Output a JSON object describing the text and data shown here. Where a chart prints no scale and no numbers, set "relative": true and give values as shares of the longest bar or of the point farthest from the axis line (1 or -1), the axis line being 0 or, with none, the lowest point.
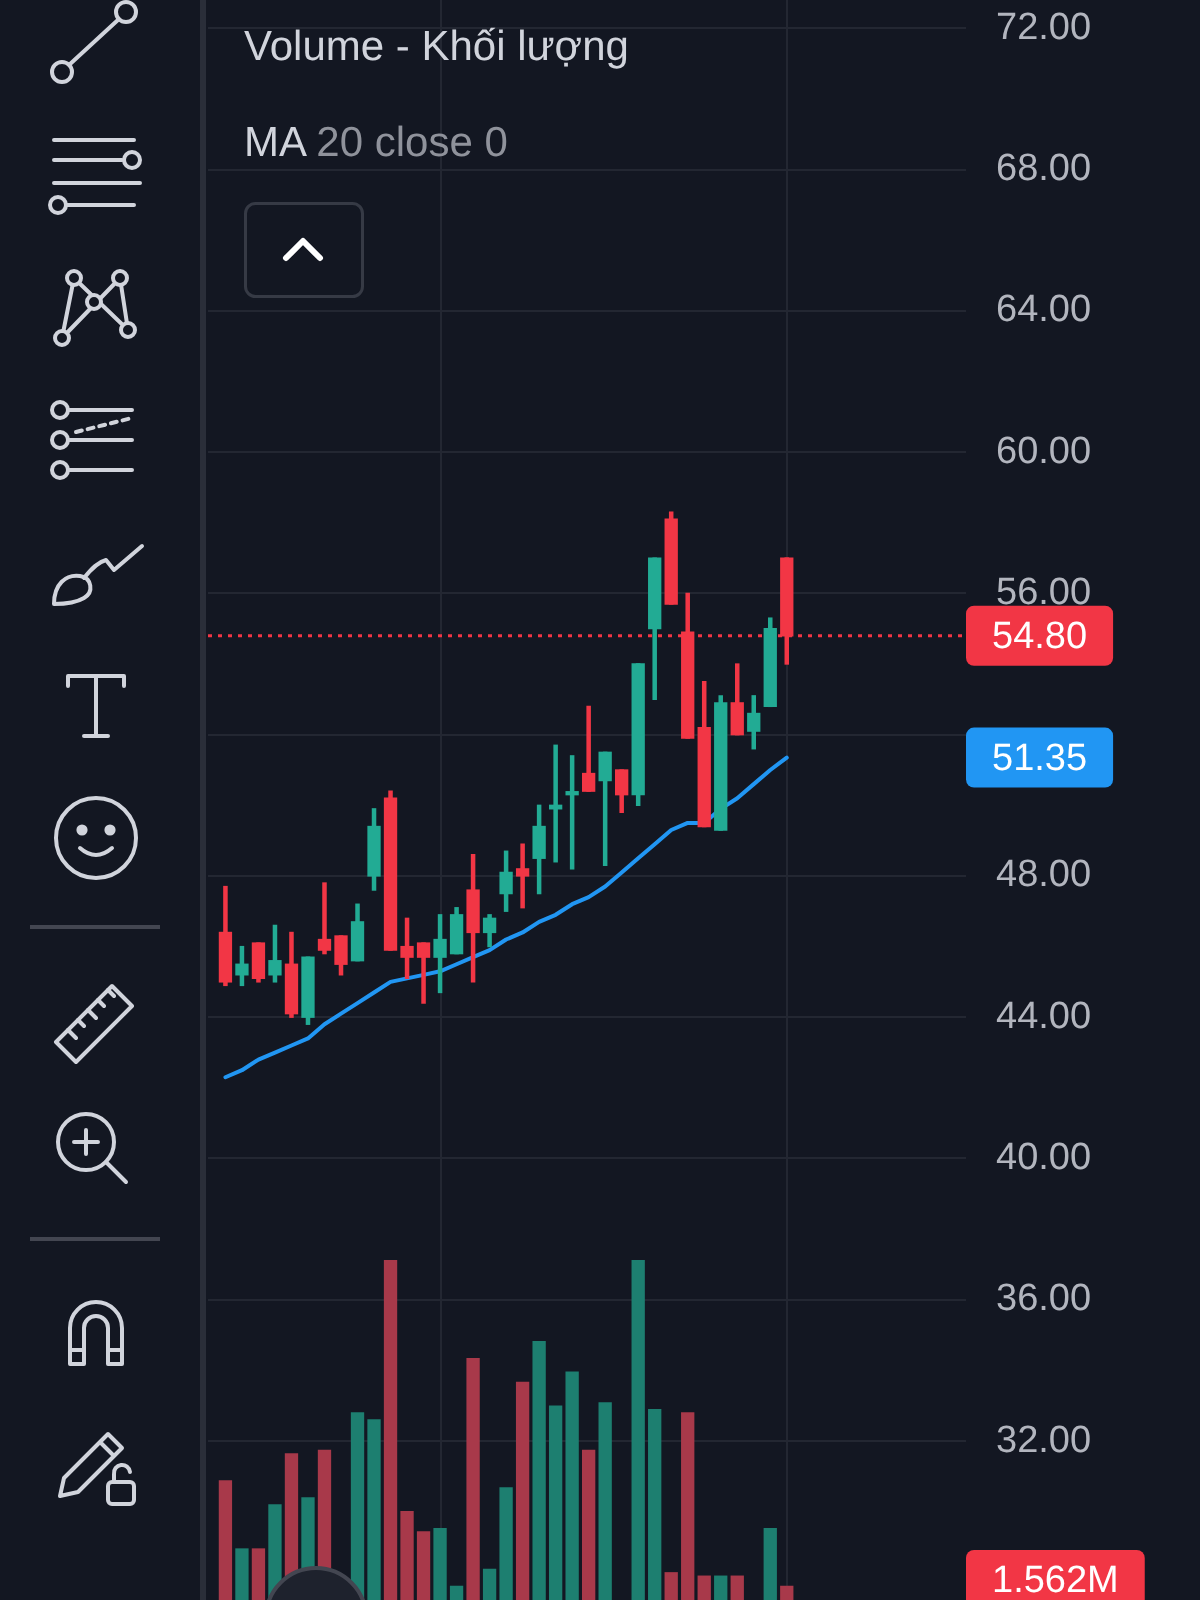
{
  "chart_data": [
    {
      "type": "candlestick",
      "title": "MA 20 close 0",
      "categories": [
        null,
        null,
        null,
        null,
        null,
        null,
        null,
        null,
        null,
        null,
        null,
        null,
        null,
        null,
        null,
        null,
        null,
        null,
        null,
        null,
        null,
        null,
        null,
        null,
        null,
        null,
        null,
        null,
        null,
        null,
        null,
        null,
        null,
        null,
        null
      ],
      "ohlc": [
        [
          46.4,
          47.7,
          44.9,
          45.0
        ],
        [
          45.2,
          46.0,
          44.9,
          45.5
        ],
        [
          46.1,
          46.1,
          45.0,
          45.1
        ],
        [
          45.2,
          46.6,
          45.0,
          45.6
        ],
        [
          45.5,
          46.4,
          44.0,
          44.1
        ],
        [
          44.0,
          45.7,
          43.8,
          45.7
        ],
        [
          46.2,
          47.8,
          45.8,
          45.9
        ],
        [
          46.3,
          46.3,
          45.2,
          45.5
        ],
        [
          45.6,
          47.2,
          45.6,
          46.7
        ],
        [
          48.0,
          49.9,
          47.6,
          49.4
        ],
        [
          50.2,
          50.4,
          45.9,
          45.9
        ],
        [
          46.0,
          46.8,
          45.1,
          45.7
        ],
        [
          46.1,
          46.1,
          44.4,
          45.7
        ],
        [
          45.7,
          46.9,
          44.7,
          46.2
        ],
        [
          45.8,
          47.1,
          45.8,
          46.9
        ],
        [
          47.6,
          48.6,
          45.0,
          46.4
        ],
        [
          46.4,
          46.9,
          46.0,
          46.8
        ],
        [
          47.5,
          48.7,
          47.0,
          48.1
        ],
        [
          48.2,
          48.9,
          47.1,
          48.0
        ],
        [
          48.5,
          50.0,
          47.5,
          49.4
        ],
        [
          49.9,
          51.7,
          48.4,
          50.0
        ],
        [
          50.3,
          51.4,
          48.2,
          50.3
        ],
        [
          50.9,
          52.8,
          50.4,
          50.4
        ],
        [
          50.7,
          51.5,
          48.3,
          51.5
        ],
        [
          51.0,
          51.0,
          49.8,
          50.3
        ],
        [
          50.3,
          54.0,
          50.0,
          54.0
        ],
        [
          55.0,
          57.0,
          53.0,
          57.0
        ],
        [
          58.1,
          58.3,
          55.7,
          55.7
        ],
        [
          54.9,
          56.0,
          51.9,
          51.9
        ],
        [
          52.2,
          53.5,
          49.4,
          49.4
        ],
        [
          49.3,
          53.1,
          49.3,
          52.9
        ],
        [
          52.9,
          54.0,
          52.0,
          52.0
        ],
        [
          52.1,
          53.1,
          51.6,
          52.6
        ],
        [
          52.8,
          55.3,
          52.8,
          55.0
        ],
        [
          57.0,
          57.0,
          54.0,
          54.8
        ]
      ],
      "colors": [
        "#f23645",
        "#22ab94",
        "#f23645",
        "#22ab94",
        "#f23645",
        "#22ab94",
        "#f23645",
        "#f23645",
        "#22ab94",
        "#22ab94",
        "#f23645",
        "#f23645",
        "#f23645",
        "#22ab94",
        "#22ab94",
        "#f23645",
        "#22ab94",
        "#22ab94",
        "#f23645",
        "#22ab94",
        "#22ab94",
        "#22ab94",
        "#f23645",
        "#22ab94",
        "#f23645",
        "#22ab94",
        "#22ab94",
        "#f23645",
        "#f23645",
        "#f23645",
        "#22ab94",
        "#f23645",
        "#22ab94",
        "#22ab94",
        "#f23645"
      ],
      "series": [
        {
          "type": "line",
          "color": "#2196f3",
          "values": [
            42.3,
            42.5,
            42.8,
            43.0,
            43.2,
            43.4,
            43.8,
            44.1,
            44.4,
            44.7,
            45.0,
            45.1,
            45.2,
            45.3,
            45.5,
            45.7,
            45.9,
            46.2,
            46.4,
            46.7,
            46.9,
            47.2,
            47.4,
            47.7,
            48.1,
            48.5,
            48.9,
            49.3,
            49.5,
            49.5,
            49.9,
            50.2,
            50.6,
            51.0,
            51.35
          ]
        }
      ],
      "ylim": [
        27.5,
        72.8
      ],
      "yticks": [
        {
          "value": 32,
          "label": "32.00"
        },
        {
          "value": 36,
          "label": "36.00"
        },
        {
          "value": 40,
          "label": "40.00"
        },
        {
          "value": 44,
          "label": "44.00"
        },
        {
          "value": 48,
          "label": "48.00"
        },
        {
          "value": 52,
          "label": null
        },
        {
          "value": 56,
          "label": "56.00"
        },
        {
          "value": 60,
          "label": "60.00"
        },
        {
          "value": 64,
          "label": "64.00"
        },
        {
          "value": 68,
          "label": "68.00"
        },
        {
          "value": 72,
          "label": "72.00"
        }
      ],
      "grid": "y",
      "tick_labels": "y",
      "ref_lines": [
        {
          "axis": "y",
          "value": 54.8,
          "label": "54.80",
          "color": "#f23645",
          "line_style": "dotted"
        }
      ],
      "annotations": [
        "51.35"
      ]
    },
    {
      "type": "bar",
      "title": "Volume - Khối lượng",
      "relative": true,
      "categories": [
        null,
        null,
        null,
        null,
        null,
        null,
        null,
        null,
        null,
        null,
        null,
        null,
        null,
        null,
        null,
        null,
        null,
        null,
        null,
        null,
        null,
        null,
        null,
        null,
        null,
        null,
        null,
        null,
        null,
        null,
        null,
        null,
        null,
        null,
        null
      ],
      "values": [
        0.35,
        0.15,
        0.15,
        0.28,
        0.43,
        0.3,
        0.44,
        null,
        0.55,
        0.53,
        1,
        0.26,
        0.2,
        0.21,
        0.04,
        0.71,
        0.09,
        0.33,
        0.64,
        0.76,
        0.57,
        0.67,
        0.44,
        0.58,
        null,
        1,
        0.56,
        0.08,
        0.55,
        0.07,
        0.07,
        0.07,
        null,
        0.21,
        0.04
      ],
      "colors": [
        "#a8394a",
        "#1d7f70",
        "#a8394a",
        "#1d7f70",
        "#a8394a",
        "#1d7f70",
        "#a8394a",
        "#a8394a",
        "#1d7f70",
        "#1d7f70",
        "#a8394a",
        "#a8394a",
        "#a8394a",
        "#1d7f70",
        "#1d7f70",
        "#a8394a",
        "#1d7f70",
        "#1d7f70",
        "#a8394a",
        "#1d7f70",
        "#1d7f70",
        "#1d7f70",
        "#a8394a",
        "#1d7f70",
        "#a8394a",
        "#1d7f70",
        "#1d7f70",
        "#a8394a",
        "#a8394a",
        "#a8394a",
        "#1d7f70",
        "#a8394a",
        "#1d7f70",
        "#1d7f70",
        "#a8394a"
      ],
      "annotations": [
        "1.562M"
      ]
    }
  ]
}
